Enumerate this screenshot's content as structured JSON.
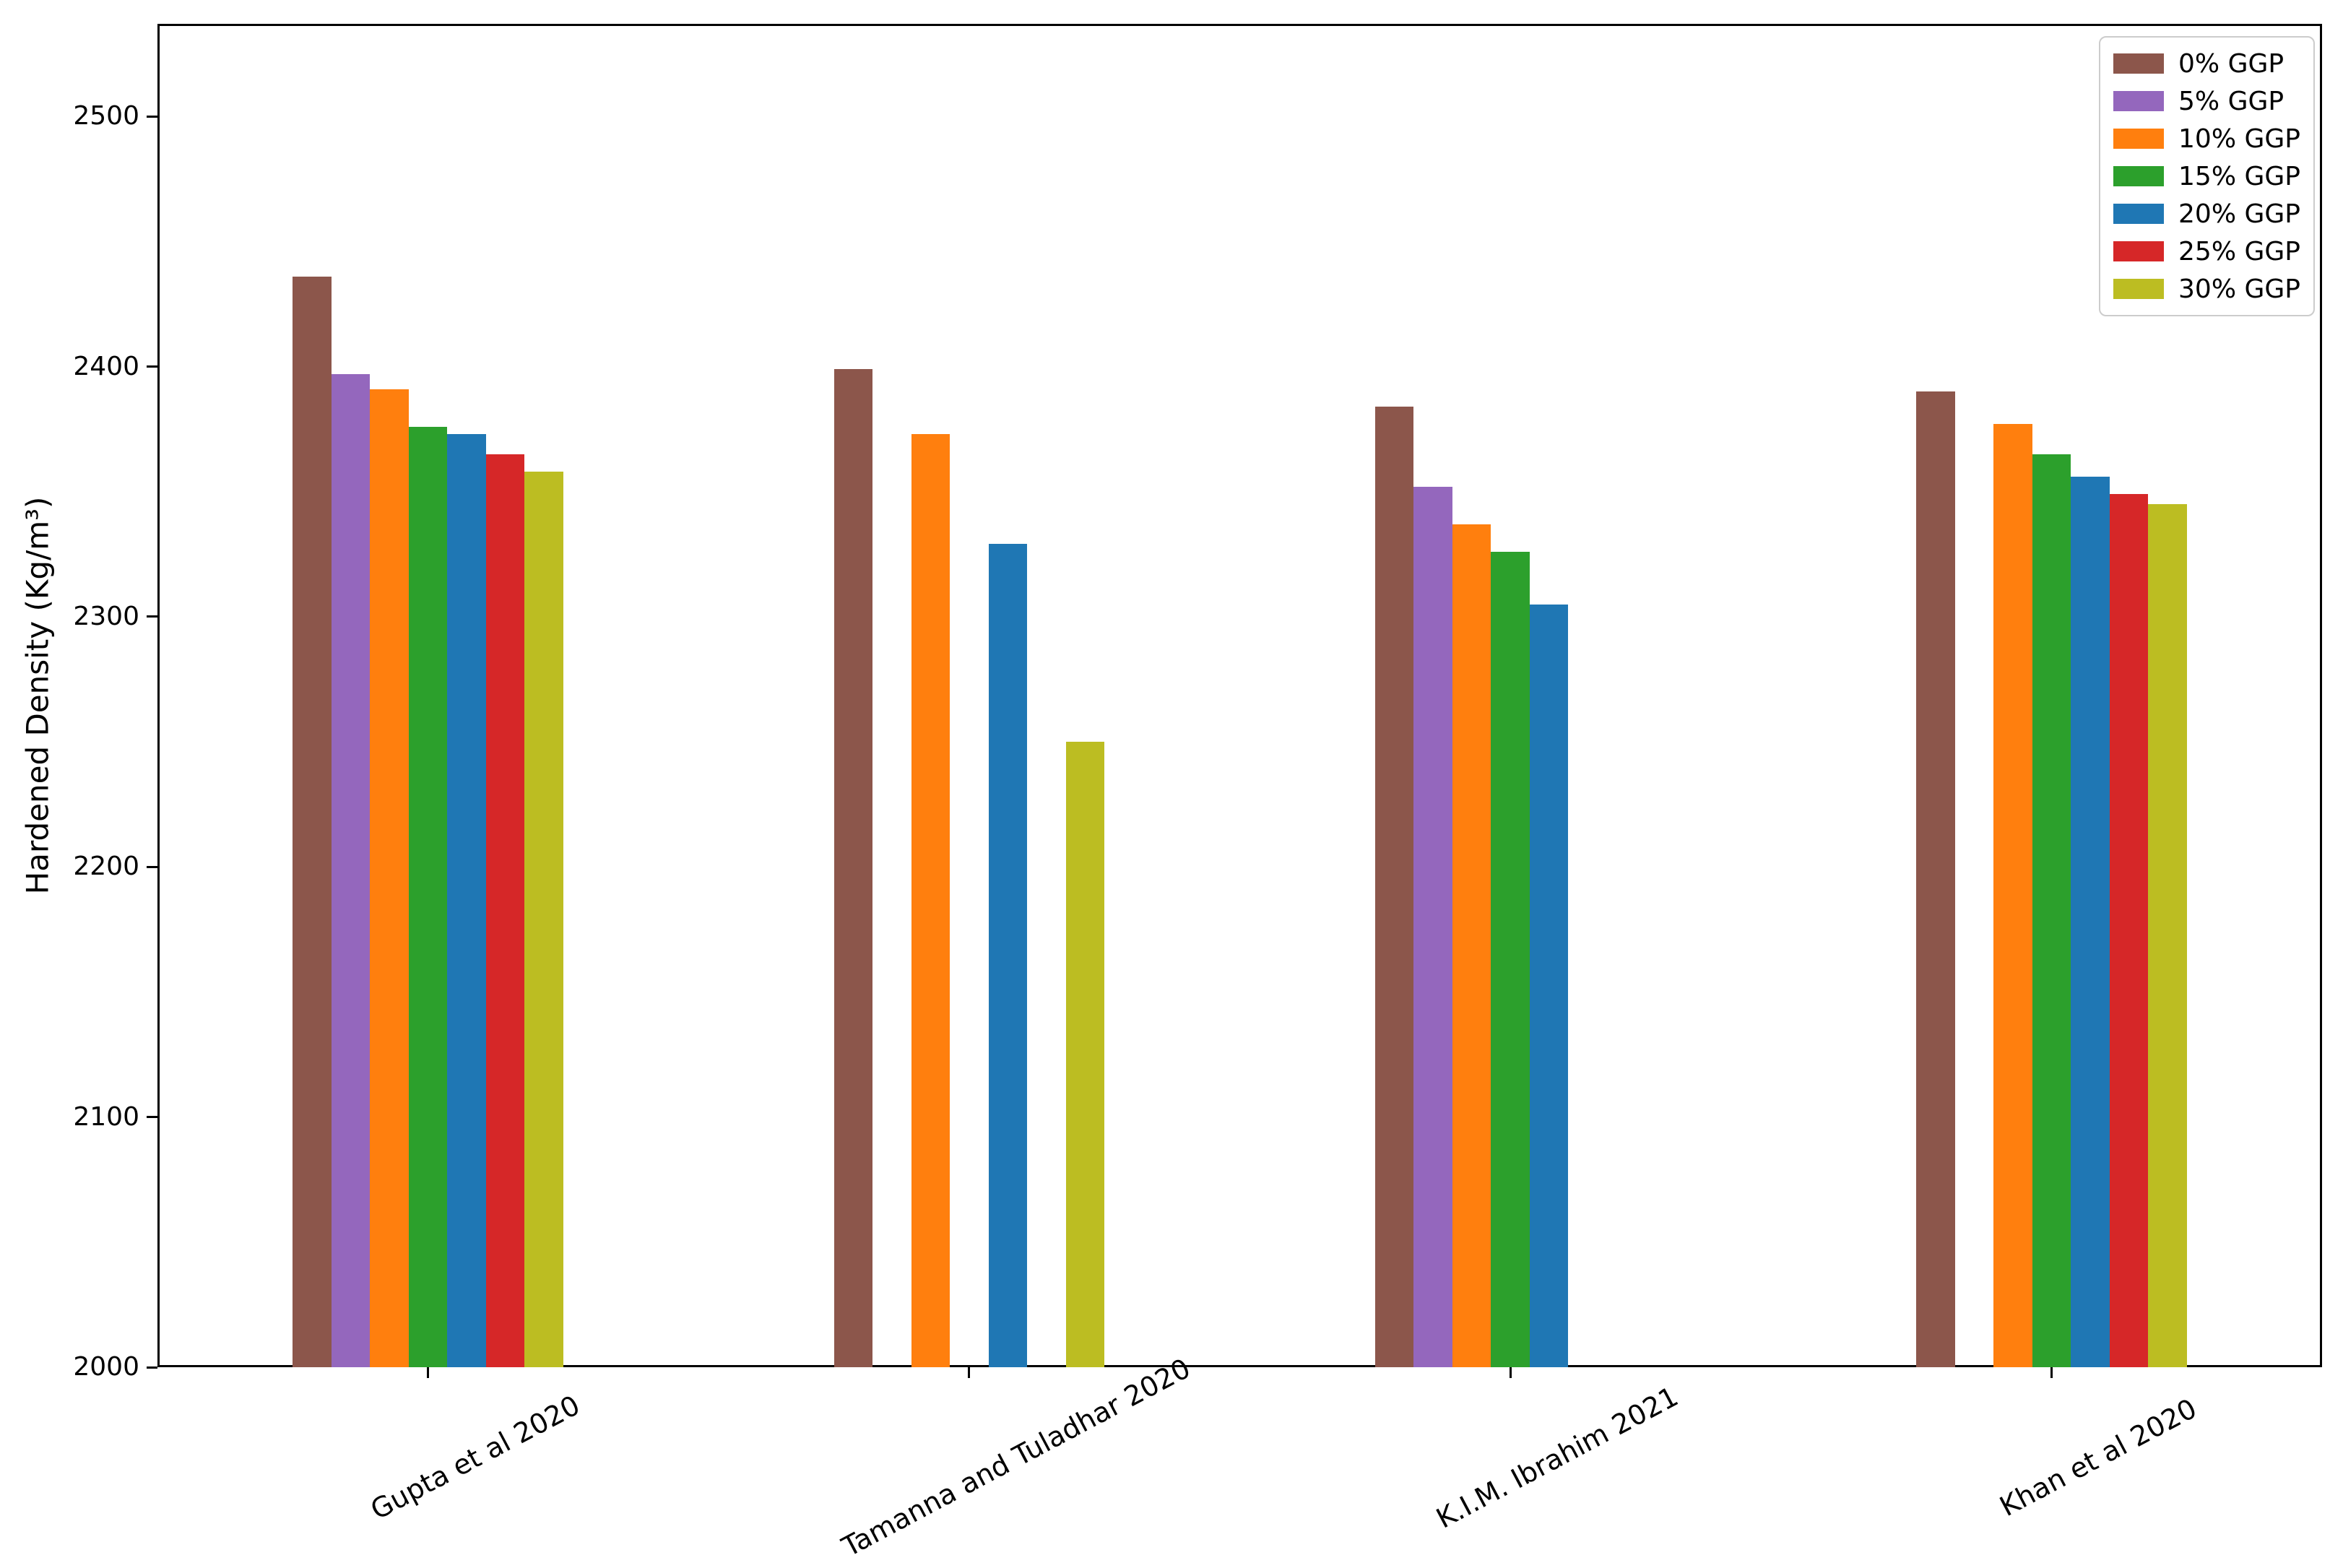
{
  "chart_data": {
    "type": "bar",
    "title": "",
    "xlabel": "",
    "ylabel": "Hardened Density (Kg/m³)",
    "categories": [
      "Gupta et al 2020",
      "Tamanna and Tuladhar 2020",
      "K.I.M. Ibrahim 2021",
      "Khan et al 2020"
    ],
    "series": [
      {
        "name": "0% GGP",
        "color": "#8c564b",
        "values": [
          2436,
          2399,
          2384,
          2390
        ]
      },
      {
        "name": "5% GGP",
        "color": "#9467bd",
        "values": [
          2397,
          null,
          2352,
          null
        ]
      },
      {
        "name": "10% GGP",
        "color": "#ff7f0e",
        "values": [
          2391,
          2373,
          2337,
          2377
        ]
      },
      {
        "name": "15% GGP",
        "color": "#2ca02c",
        "values": [
          2376,
          null,
          2326,
          2365
        ]
      },
      {
        "name": "20% GGP",
        "color": "#1f77b4",
        "values": [
          2373,
          2329,
          2305,
          2356
        ]
      },
      {
        "name": "25% GGP",
        "color": "#d62728",
        "values": [
          2365,
          null,
          null,
          2349
        ]
      },
      {
        "name": "30% GGP",
        "color": "#bcbd22",
        "values": [
          2358,
          2250,
          null,
          2345
        ]
      }
    ],
    "ylim": [
      2000,
      2537
    ],
    "yticks": [
      2000,
      2100,
      2200,
      2300,
      2400,
      2500
    ],
    "legend_position": "upper right",
    "grid": false,
    "axis_color": "#000000",
    "legend_border_color": "#cccccc"
  }
}
